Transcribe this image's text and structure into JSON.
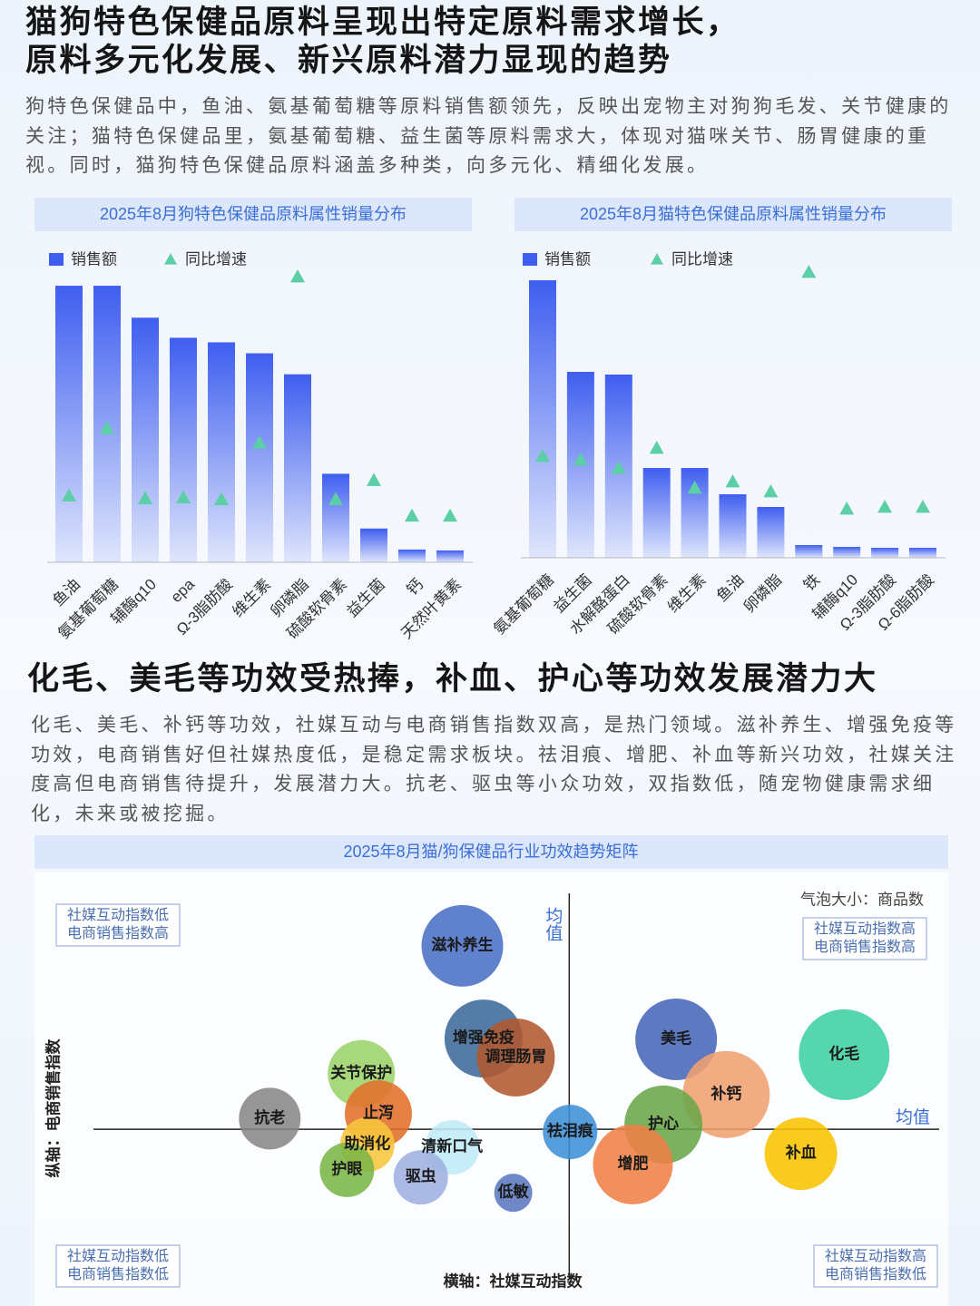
{
  "sections": [
    {
      "title": [
        "猫狗特色保健品原料呈现出特定原料需求增长，",
        "原料多元化发展、新兴原料潜力显现的趋势"
      ],
      "body": "狗特色保健品中，鱼油、氨基葡萄糖等原料销售额领先，反映出宠物主对狗狗毛发、关节健康的关注；猫特色保健品里，氨基葡萄糖、益生菌等原料需求大，体现对猫咪关节、肠胃健康的重视。同时，猫狗特色保健品原料涵盖多种类，向多元化、精细化发展。"
    },
    {
      "title": [
        "化毛、美毛等功效受热捧，补血、护心等功效发展潜力大"
      ],
      "body": "化毛、美毛、补钙等功效，社媒互动与电商销售指数双高，是热门领域。滋补养生、增强免疫等功效，电商销售好但社媒热度低，是稳定需求板块。祛泪痕、增肥、补血等新兴功效，社媒关注度高但电商销售待提升，发展潜力大。抗老、驱虫等小众功效，双指数低，随宠物健康需求细化，未来或被挖掘。"
    }
  ],
  "chart_data": [
    {
      "type": "bar",
      "title": "2025年8月狗特色保健品原料属性销量分布",
      "categories": [
        "鱼油",
        "氨基葡萄糖",
        "辅酶q10",
        "epa",
        "Ω-3脂肪酸",
        "维生素",
        "卵磷脂",
        "硫酸软骨素",
        "益生菌",
        "钙",
        "天然叶黄素"
      ],
      "series": [
        {
          "name": "销售额",
          "color": "#3f5ef0",
          "marker": "bar",
          "values": [
            303,
            303,
            268,
            246,
            241,
            229,
            206,
            97,
            37,
            14,
            13
          ]
        },
        {
          "name": "同比增速",
          "color": "#5ccfa6",
          "marker": "triangle",
          "values": [
            73,
            147,
            70,
            71,
            69,
            131,
            313,
            69,
            90,
            51,
            51
          ]
        }
      ]
    },
    {
      "type": "bar",
      "title": "2025年8月猫特色保健品原料属性销量分布",
      "categories": [
        "氨基葡萄糖",
        "益生菌",
        "水解酪蛋白",
        "硫酸软骨素",
        "维生素",
        "鱼油",
        "卵磷脂",
        "铁",
        "辅酶q10",
        "Ω-3脂肪酸",
        "Ω-6脂肪酸"
      ],
      "series": [
        {
          "name": "销售额",
          "color": "#3f5ef0",
          "marker": "bar",
          "values": [
            306,
            205,
            202,
            99,
            99,
            70,
            56,
            14,
            12,
            11,
            11
          ]
        },
        {
          "name": "同比增速",
          "color": "#5ccfa6",
          "marker": "triangle",
          "values": [
            112,
            108,
            99,
            121,
            77,
            84,
            73,
            315,
            54,
            56,
            56
          ]
        }
      ]
    },
    {
      "type": "bubble",
      "title": "2025年8月猫/狗保健品行业功效趋势矩阵",
      "x_label": "横轴：社媒互动指数",
      "y_label": "纵轴：电商销售指数",
      "size_label": "气泡大小：商品数",
      "xlim": [
        0,
        100
      ],
      "ylim": [
        0,
        100
      ],
      "xticks": [
        {
          "value": 56.4,
          "label": "均值"
        }
      ],
      "yticks": [
        {
          "value": 40.2,
          "label": "均值"
        }
      ],
      "quadrants": [
        [
          "社媒互动指数低",
          "电商销售指数高"
        ],
        [
          "社媒互动指数高",
          "电商销售指数高"
        ],
        [
          "社媒互动指数低",
          "电商销售指数低"
        ],
        [
          "社媒互动指数高",
          "电商销售指数低"
        ]
      ],
      "points": [
        {
          "name": "滋补养生",
          "x": 43.8,
          "y": 86.7,
          "size": 45,
          "color": "#4a6fc4"
        },
        {
          "name": "增强免疫",
          "x": 46.3,
          "y": 63.2,
          "size": 43,
          "color": "#3e6a9a"
        },
        {
          "name": "调理肠胃",
          "x": 50.1,
          "y": 58.4,
          "size": 43,
          "color": "#b0592f"
        },
        {
          "name": "关节保护",
          "x": 31.9,
          "y": 54.3,
          "size": 37,
          "color": "#9bd36a"
        },
        {
          "name": "止泻",
          "x": 33.9,
          "y": 44.1,
          "size": 37,
          "color": "#e2702a"
        },
        {
          "name": "抗老",
          "x": 21.1,
          "y": 42.9,
          "size": 34,
          "color": "#888888"
        },
        {
          "name": "助消化",
          "x": 32.6,
          "y": 36.3,
          "size": 30,
          "color": "#f7c63b"
        },
        {
          "name": "护眼",
          "x": 30.2,
          "y": 29.9,
          "size": 30,
          "color": "#7ab648"
        },
        {
          "name": "清新口气",
          "x": 42.6,
          "y": 35.6,
          "size": 30,
          "color": "#bfeaf7"
        },
        {
          "name": "驱虫",
          "x": 38.9,
          "y": 28.0,
          "size": 30,
          "color": "#9fb0e0"
        },
        {
          "name": "低敏",
          "x": 49.8,
          "y": 24.1,
          "size": 21,
          "color": "#5a78c0"
        },
        {
          "name": "祛泪痕",
          "x": 56.5,
          "y": 39.5,
          "size": 30,
          "color": "#3d8fd6"
        },
        {
          "name": "美毛",
          "x": 69.0,
          "y": 63.0,
          "size": 45,
          "color": "#4566b8"
        },
        {
          "name": "补钙",
          "x": 74.9,
          "y": 49.0,
          "size": 48,
          "color": "#f0a070"
        },
        {
          "name": "护心",
          "x": 67.5,
          "y": 41.4,
          "size": 43,
          "color": "#6aa64a"
        },
        {
          "name": "增肥",
          "x": 63.9,
          "y": 31.3,
          "size": 44,
          "color": "#ef8047"
        },
        {
          "name": "化毛",
          "x": 88.8,
          "y": 59.1,
          "size": 50,
          "color": "#3dd0a0"
        },
        {
          "name": "补血",
          "x": 83.7,
          "y": 34.0,
          "size": 40,
          "color": "#f8c400"
        }
      ]
    }
  ]
}
